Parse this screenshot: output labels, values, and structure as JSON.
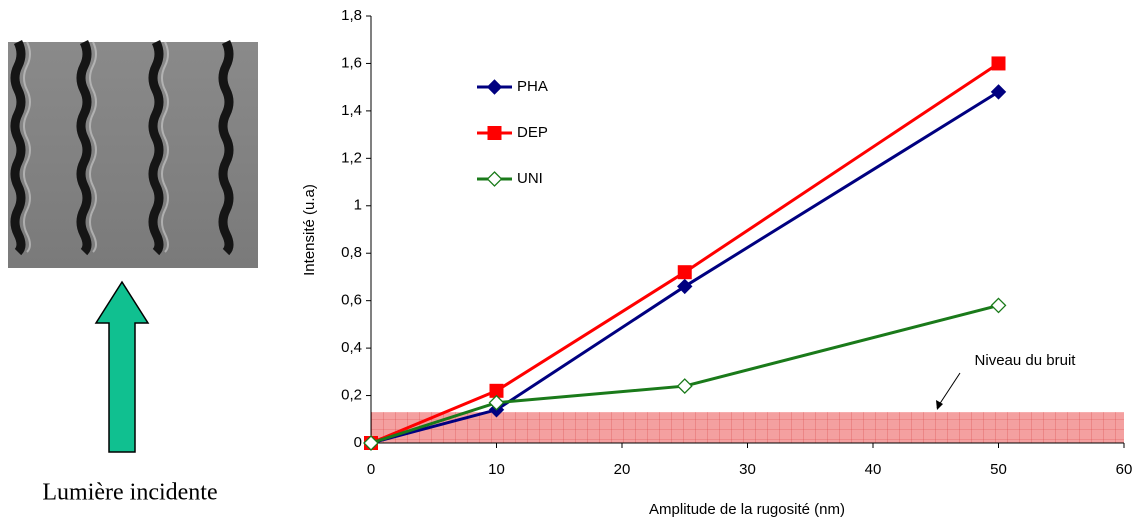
{
  "caption": "Lumière incidente",
  "chart_data": {
    "type": "line",
    "x_label": "Amplitude de la rugosité (nm)",
    "y_label": "Intensité (u.a)",
    "xlim": [
      0,
      60
    ],
    "xticks": [
      0,
      10,
      20,
      30,
      40,
      50,
      60
    ],
    "ylim": [
      0,
      1.8
    ],
    "yticks": [
      0,
      {
        "value": 0.2,
        "label": "0,2"
      },
      {
        "value": 0.4,
        "label": "0,4"
      },
      {
        "value": 0.6,
        "label": "0,6"
      },
      {
        "value": 0.8,
        "label": "0,8"
      },
      1,
      {
        "value": 1.2,
        "label": "1,2"
      },
      {
        "value": 1.4,
        "label": "1,4"
      },
      {
        "value": 1.6,
        "label": "1,6"
      },
      {
        "value": 1.8,
        "label": "1,8"
      }
    ],
    "x": [
      0,
      10,
      25,
      50
    ],
    "series": [
      {
        "name": "PHA",
        "color": "#000080",
        "marker": "diamond",
        "values": [
          0,
          0.14,
          0.66,
          1.48
        ]
      },
      {
        "name": "DEP",
        "color": "#ff0000",
        "marker": "square",
        "values": [
          0,
          0.22,
          0.72,
          1.6
        ]
      },
      {
        "name": "UNI",
        "color": "#1a7a1a",
        "marker": "open-diamond",
        "values": [
          0,
          0.17,
          0.24,
          0.58
        ]
      }
    ],
    "noise_band": {
      "label": "Niveau du bruit",
      "ylim": [
        0,
        0.13
      ],
      "color": "#f08080"
    }
  }
}
